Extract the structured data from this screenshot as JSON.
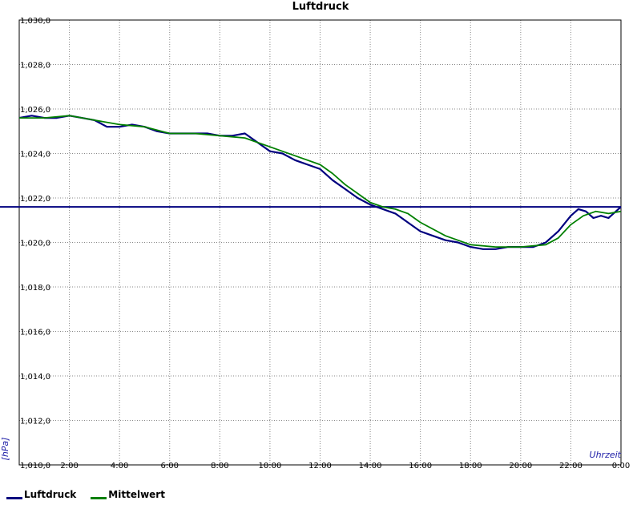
{
  "chart_data": {
    "type": "line",
    "title": "Luftdruck",
    "ylabel": "[hPa]",
    "xlabel": "Uhrzeit",
    "x_unit": "hours",
    "xlim": [
      0,
      24
    ],
    "ylim": [
      1010,
      1030
    ],
    "y_ticks": [
      "1,010,0",
      "1,012,0",
      "1,014,0",
      "1,016,0",
      "1,018,0",
      "1,020,0",
      "1,022,0",
      "1,024,0",
      "1,026,0",
      "1,028,0",
      "1,030,0"
    ],
    "y_tick_values": [
      1010,
      1012,
      1014,
      1016,
      1018,
      1020,
      1022,
      1024,
      1026,
      1028,
      1030
    ],
    "x_ticks": [
      "2:00",
      "4:00",
      "6:00",
      "8:00",
      "10:00",
      "12:00",
      "14:00",
      "16:00",
      "18:00",
      "20:00",
      "22:00",
      "0:00"
    ],
    "x_tick_values": [
      2,
      4,
      6,
      8,
      10,
      12,
      14,
      16,
      18,
      20,
      22,
      24
    ],
    "grid": true,
    "legend_position": "bottom-left",
    "reference_line": {
      "y": 1021.6,
      "color": "#00007f"
    },
    "series": [
      {
        "name": "Luftdruck",
        "color": "#00007f",
        "x": [
          0,
          0.5,
          1.0,
          1.5,
          2.0,
          2.5,
          3.0,
          3.5,
          4.0,
          4.5,
          5.0,
          5.5,
          6.0,
          6.5,
          7.0,
          7.5,
          8.0,
          8.5,
          9.0,
          9.5,
          10.0,
          10.5,
          11.0,
          11.5,
          12.0,
          12.5,
          13.0,
          13.5,
          14.0,
          14.5,
          15.0,
          15.5,
          16.0,
          16.5,
          17.0,
          17.5,
          18.0,
          18.5,
          19.0,
          19.5,
          20.0,
          20.5,
          21.0,
          21.5,
          22.0,
          22.3,
          22.6,
          22.9,
          23.2,
          23.5,
          23.8,
          24.0
        ],
        "y": [
          1025.6,
          1025.7,
          1025.6,
          1025.6,
          1025.7,
          1025.6,
          1025.5,
          1025.2,
          1025.2,
          1025.3,
          1025.2,
          1025.0,
          1024.9,
          1024.9,
          1024.9,
          1024.9,
          1024.8,
          1024.8,
          1024.9,
          1024.5,
          1024.1,
          1024.0,
          1023.7,
          1023.5,
          1023.3,
          1022.8,
          1022.4,
          1022.0,
          1021.7,
          1021.5,
          1021.3,
          1020.9,
          1020.5,
          1020.3,
          1020.1,
          1020.0,
          1019.8,
          1019.7,
          1019.7,
          1019.8,
          1019.8,
          1019.8,
          1020.0,
          1020.5,
          1021.2,
          1021.5,
          1021.4,
          1021.1,
          1021.2,
          1021.1,
          1021.4,
          1021.6
        ]
      },
      {
        "name": "Mittelwert",
        "color": "#008000",
        "x": [
          0,
          1.0,
          2.0,
          3.0,
          4.0,
          5.0,
          6.0,
          7.0,
          8.0,
          9.0,
          10.0,
          11.0,
          12.0,
          12.5,
          13.0,
          13.5,
          14.0,
          14.5,
          15.0,
          15.5,
          16.0,
          17.0,
          18.0,
          19.0,
          20.0,
          21.0,
          21.5,
          22.0,
          22.5,
          23.0,
          23.5,
          24.0
        ],
        "y": [
          1025.6,
          1025.6,
          1025.7,
          1025.5,
          1025.3,
          1025.2,
          1024.9,
          1024.9,
          1024.8,
          1024.7,
          1024.3,
          1023.9,
          1023.5,
          1023.1,
          1022.6,
          1022.2,
          1021.8,
          1021.6,
          1021.5,
          1021.3,
          1020.9,
          1020.3,
          1019.9,
          1019.8,
          1019.8,
          1019.9,
          1020.2,
          1020.8,
          1021.2,
          1021.4,
          1021.3,
          1021.4
        ]
      }
    ]
  }
}
